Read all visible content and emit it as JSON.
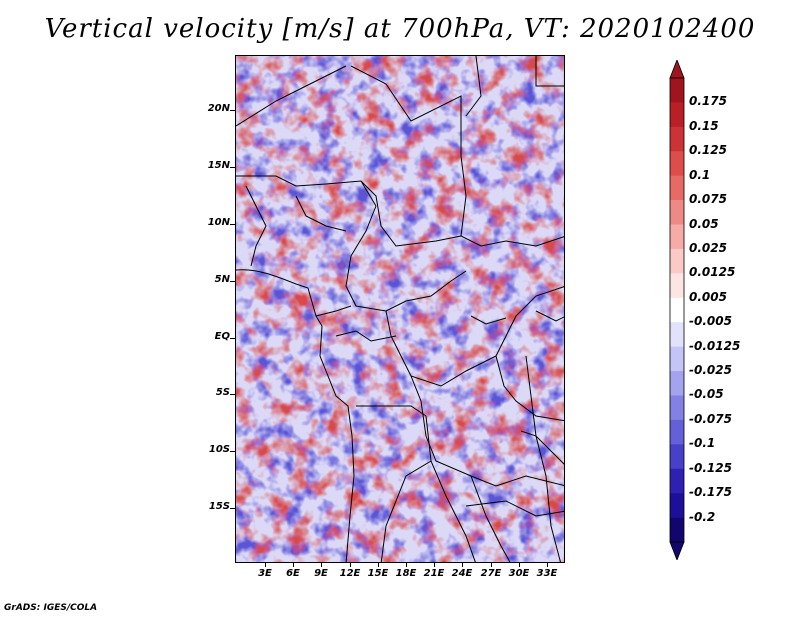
{
  "title": "Vertical velocity [m/s] at 700hPa, VT: 2020102400",
  "footer": "GrADS: IGES/COLA",
  "lat_labels": [
    "20N",
    "15N",
    "10N",
    "5N",
    "EQ",
    "5S",
    "10S",
    "15S"
  ],
  "lon_labels": [
    "3E",
    "6E",
    "9E",
    "12E",
    "15E",
    "18E",
    "21E",
    "24E",
    "27E",
    "30E",
    "33E"
  ],
  "map_extent": {
    "lon_min": 0.5,
    "lon_max": 35.0,
    "lat_min": -19.5,
    "lat_max": 25.0
  },
  "colorbar": {
    "levels": [
      "0.175",
      "0.15",
      "0.125",
      "0.1",
      "0.075",
      "0.05",
      "0.025",
      "0.0125",
      "0.005",
      "-0.005",
      "-0.0125",
      "-0.025",
      "-0.05",
      "-0.075",
      "-0.1",
      "-0.125",
      "-0.175",
      "-0.2"
    ],
    "colors": [
      "#a0141e",
      "#b81f26",
      "#cc3336",
      "#dc4d4c",
      "#e66a66",
      "#ee8a86",
      "#f5aba7",
      "#facac6",
      "#fde5e3",
      "#ffffff",
      "#e2e2fb",
      "#c4c4f6",
      "#a4a3ee",
      "#8481e4",
      "#6360d8",
      "#4740c8",
      "#2f20b4",
      "#1e0f9a",
      "#12056e"
    ]
  },
  "colors": {
    "positive": "#cc3336",
    "negative": "#4740c8",
    "neutral": "#ffffff"
  }
}
